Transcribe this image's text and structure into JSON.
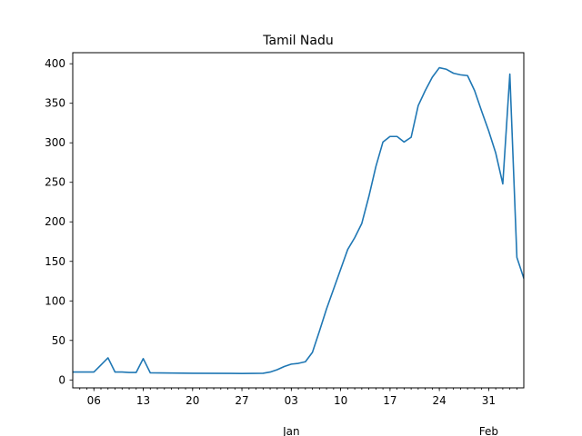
{
  "chart_data": {
    "type": "line",
    "title": "Tamil Nadu",
    "xlabel": "",
    "ylabel": "",
    "grid": false,
    "line_color": "#1f77b4",
    "x_ticks": [
      "06",
      "13",
      "20",
      "27",
      "03",
      "10",
      "17",
      "24",
      "31"
    ],
    "x_secondary": [
      {
        "label": "Jan",
        "date": "2021-01-03"
      },
      {
        "label": "Feb",
        "date": "2021-01-31"
      }
    ],
    "y_ticks": [
      0,
      50,
      100,
      150,
      200,
      250,
      300,
      350,
      400
    ],
    "ylim": [
      -10,
      414
    ],
    "xlim": [
      "2020-12-03",
      "2021-02-04"
    ],
    "series": [
      {
        "points": [
          [
            "2020-12-03",
            10
          ],
          [
            "2020-12-04",
            10
          ],
          [
            "2020-12-05",
            10
          ],
          [
            "2020-12-06",
            10
          ],
          [
            "2020-12-07",
            19
          ],
          [
            "2020-12-08",
            28
          ],
          [
            "2020-12-09",
            10
          ],
          [
            "2020-12-10",
            10
          ],
          [
            "2020-12-11",
            9.5
          ],
          [
            "2020-12-12",
            9.5
          ],
          [
            "2020-12-13",
            27
          ],
          [
            "2020-12-14",
            9
          ],
          [
            "2020-12-20",
            8.5
          ],
          [
            "2020-12-27",
            8.2
          ],
          [
            "2020-12-30",
            8.5
          ],
          [
            "2020-12-31",
            10
          ],
          [
            "2021-01-01",
            13
          ],
          [
            "2021-01-02",
            17
          ],
          [
            "2021-01-03",
            20
          ],
          [
            "2021-01-04",
            21
          ],
          [
            "2021-01-05",
            23
          ],
          [
            "2021-01-06",
            35
          ],
          [
            "2021-01-07",
            62
          ],
          [
            "2021-01-08",
            90
          ],
          [
            "2021-01-09",
            115
          ],
          [
            "2021-01-10",
            140
          ],
          [
            "2021-01-11",
            165
          ],
          [
            "2021-01-12",
            180
          ],
          [
            "2021-01-13",
            198
          ],
          [
            "2021-01-14",
            232
          ],
          [
            "2021-01-15",
            270
          ],
          [
            "2021-01-16",
            301
          ],
          [
            "2021-01-17",
            308
          ],
          [
            "2021-01-18",
            308
          ],
          [
            "2021-01-19",
            301
          ],
          [
            "2021-01-20",
            307
          ],
          [
            "2021-01-21",
            347
          ],
          [
            "2021-01-22",
            366
          ],
          [
            "2021-01-23",
            383
          ],
          [
            "2021-01-24",
            395
          ],
          [
            "2021-01-25",
            393
          ],
          [
            "2021-01-26",
            388
          ],
          [
            "2021-01-27",
            386
          ],
          [
            "2021-01-28",
            385
          ],
          [
            "2021-01-29",
            366
          ],
          [
            "2021-01-30",
            340
          ],
          [
            "2021-01-31",
            315
          ],
          [
            "2021-02-01",
            287
          ],
          [
            "2021-02-02",
            248
          ],
          [
            "2021-02-03",
            387
          ],
          [
            "2021-02-04",
            155
          ],
          [
            "2021-02-05",
            128
          ]
        ]
      }
    ]
  }
}
